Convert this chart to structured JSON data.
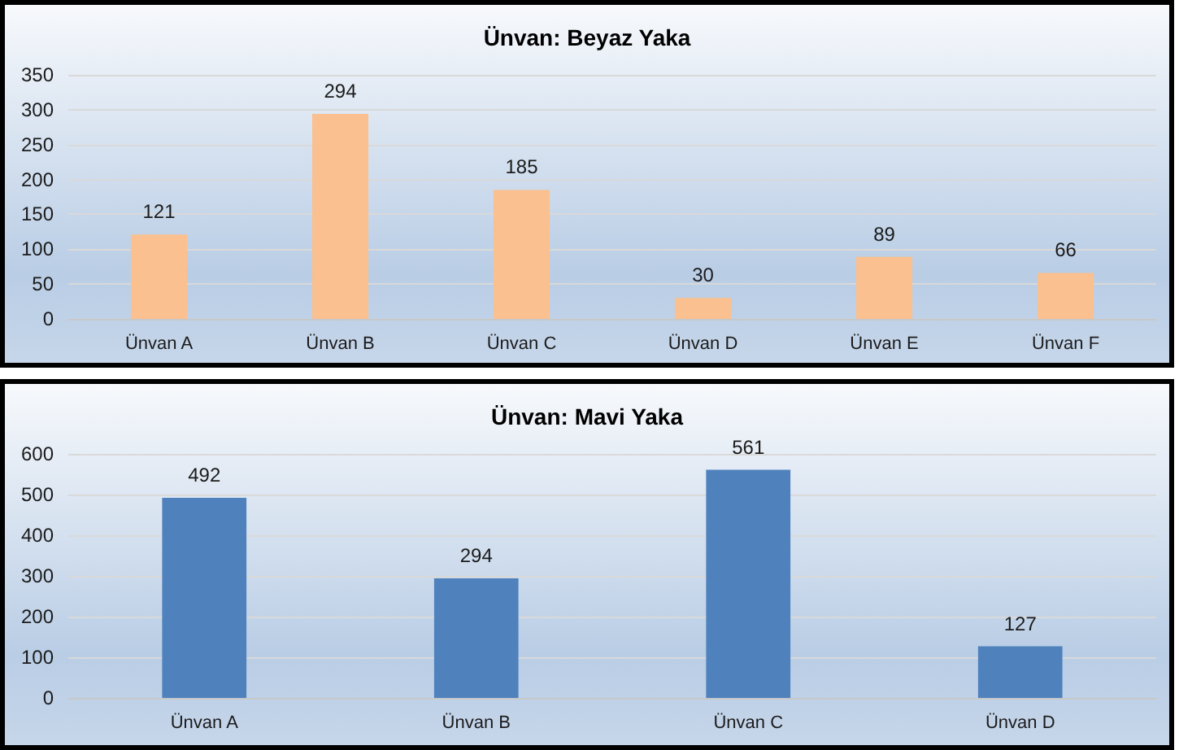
{
  "chart_data": [
    {
      "type": "bar",
      "title": "Ünvan: Beyaz Yaka",
      "categories": [
        "Ünvan A",
        "Ünvan B",
        "Ünvan C",
        "Ünvan D",
        "Ünvan E",
        "Ünvan F"
      ],
      "values": [
        121,
        294,
        185,
        30,
        89,
        66
      ],
      "color": "#fac090",
      "ylim": [
        0,
        350
      ],
      "yticks": [
        0,
        50,
        100,
        150,
        200,
        250,
        300,
        350
      ],
      "grid": "y",
      "data_labels": true
    },
    {
      "type": "bar",
      "title": "Ünvan: Mavi Yaka",
      "categories": [
        "Ünvan A",
        "Ünvan B",
        "Ünvan C",
        "Ünvan D"
      ],
      "values": [
        492,
        294,
        561,
        127
      ],
      "color": "#4f81bd",
      "ylim": [
        0,
        600
      ],
      "yticks": [
        0,
        100,
        200,
        300,
        400,
        500,
        600
      ],
      "grid": "y",
      "data_labels": true
    }
  ]
}
